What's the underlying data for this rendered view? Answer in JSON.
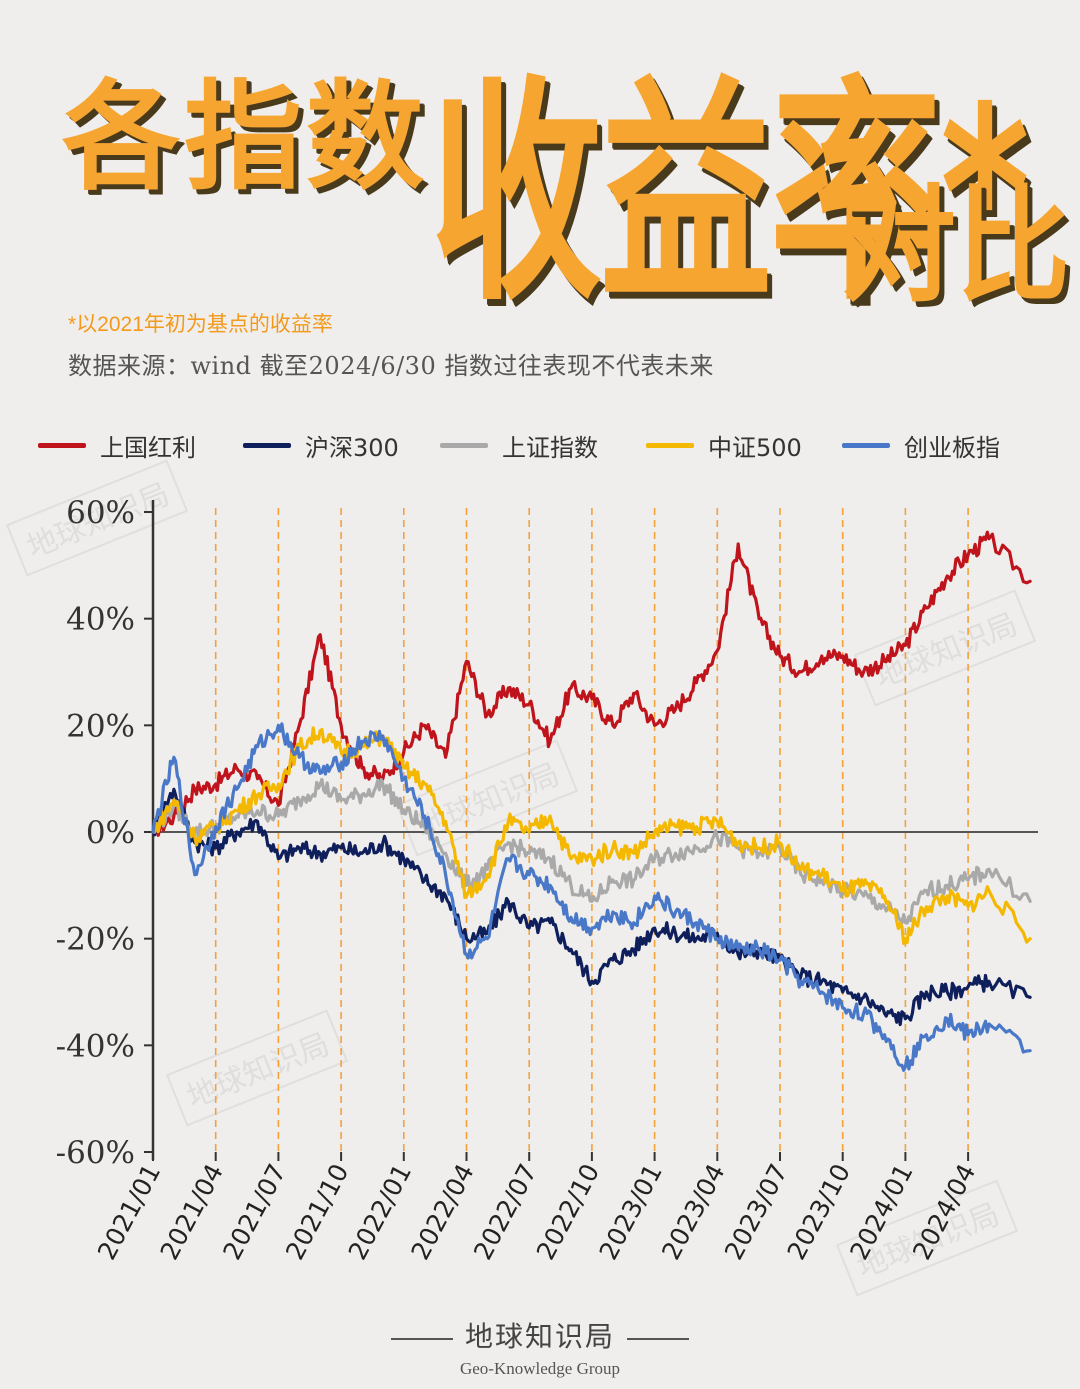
{
  "title": {
    "part1": "各指数",
    "part2": "收益率*",
    "part3": "对比"
  },
  "note": "*以2021年初为基点的收益率",
  "source": "数据来源：wind 截至2024/6/30 指数过往表现不代表未来",
  "watermark": "地球知识局",
  "footer": {
    "brand": "地球知识局",
    "english": "Geo-Knowledge Group"
  },
  "chart_data": {
    "type": "line",
    "ylim": [
      -60,
      60
    ],
    "yticks": [
      "60%",
      "40%",
      "20%",
      "0%",
      "-20%",
      "-40%",
      "-60%"
    ],
    "ytick_values": [
      60,
      40,
      20,
      0,
      -20,
      -40,
      -60
    ],
    "xticks": [
      "2021/01",
      "2021/04",
      "2021/07",
      "2021/10",
      "2022/01",
      "2022/04",
      "2022/07",
      "2022/10",
      "2023/01",
      "2023/04",
      "2023/07",
      "2023/10",
      "2024/01",
      "2024/04"
    ],
    "x_end": "2024/06/30",
    "legend_position": "top",
    "grid": "vertical dashed lines at each quarter",
    "series": [
      {
        "name": "上国红利",
        "color": "#c0141c",
        "values": [
          [
            "2021/01",
            0
          ],
          [
            "2021/02",
            3
          ],
          [
            "2021/03",
            8
          ],
          [
            "2021/04",
            9
          ],
          [
            "2021/05",
            12
          ],
          [
            "2021/06",
            10
          ],
          [
            "2021/07",
            5
          ],
          [
            "2021/08",
            20
          ],
          [
            "2021/09",
            37
          ],
          [
            "2021/10",
            20
          ],
          [
            "2021/11",
            12
          ],
          [
            "2021/12",
            10
          ],
          [
            "2022/01",
            15
          ],
          [
            "2022/02",
            20
          ],
          [
            "2022/03",
            14
          ],
          [
            "2022/04",
            32
          ],
          [
            "2022/05",
            22
          ],
          [
            "2022/06",
            27
          ],
          [
            "2022/07",
            24
          ],
          [
            "2022/08",
            17
          ],
          [
            "2022/09",
            27
          ],
          [
            "2022/10",
            25
          ],
          [
            "2022/11",
            20
          ],
          [
            "2022/12",
            26
          ],
          [
            "2023/01",
            20
          ],
          [
            "2023/02",
            23
          ],
          [
            "2023/03",
            28
          ],
          [
            "2023/04",
            34
          ],
          [
            "2023/05",
            54
          ],
          [
            "2023/06",
            40
          ],
          [
            "2023/07",
            33
          ],
          [
            "2023/08",
            30
          ],
          [
            "2023/09",
            33
          ],
          [
            "2023/10",
            33
          ],
          [
            "2023/11",
            30
          ],
          [
            "2023/12",
            32
          ],
          [
            "2024/01",
            35
          ],
          [
            "2024/02",
            42
          ],
          [
            "2024/03",
            48
          ],
          [
            "2024/04",
            52
          ],
          [
            "2024/05",
            55
          ],
          [
            "2024/06",
            47
          ]
        ]
      },
      {
        "name": "沪深300",
        "color": "#0f1f5c",
        "values": [
          [
            "2021/01",
            0
          ],
          [
            "2021/02",
            8
          ],
          [
            "2021/03",
            -2
          ],
          [
            "2021/04",
            -3
          ],
          [
            "2021/05",
            0
          ],
          [
            "2021/06",
            2
          ],
          [
            "2021/07",
            -5
          ],
          [
            "2021/08",
            -3
          ],
          [
            "2021/09",
            -4
          ],
          [
            "2021/10",
            -3
          ],
          [
            "2021/11",
            -4
          ],
          [
            "2021/12",
            -2
          ],
          [
            "2022/01",
            -5
          ],
          [
            "2022/02",
            -9
          ],
          [
            "2022/03",
            -12
          ],
          [
            "2022/04",
            -20
          ],
          [
            "2022/05",
            -19
          ],
          [
            "2022/06",
            -13
          ],
          [
            "2022/07",
            -18
          ],
          [
            "2022/08",
            -17
          ],
          [
            "2022/09",
            -22
          ],
          [
            "2022/10",
            -28
          ],
          [
            "2022/11",
            -24
          ],
          [
            "2022/12",
            -22
          ],
          [
            "2023/01",
            -18
          ],
          [
            "2023/02",
            -19
          ],
          [
            "2023/03",
            -20
          ],
          [
            "2023/04",
            -19
          ],
          [
            "2023/05",
            -23
          ],
          [
            "2023/06",
            -22
          ],
          [
            "2023/07",
            -24
          ],
          [
            "2023/08",
            -27
          ],
          [
            "2023/09",
            -28
          ],
          [
            "2023/10",
            -30
          ],
          [
            "2023/11",
            -31
          ],
          [
            "2023/12",
            -34
          ],
          [
            "2024/01",
            -35
          ],
          [
            "2024/02",
            -30
          ],
          [
            "2024/03",
            -30
          ],
          [
            "2024/04",
            -29
          ],
          [
            "2024/05",
            -28
          ],
          [
            "2024/06",
            -31
          ]
        ]
      },
      {
        "name": "上证指数",
        "color": "#a9a9a9",
        "values": [
          [
            "2021/01",
            0
          ],
          [
            "2021/02",
            5
          ],
          [
            "2021/03",
            0
          ],
          [
            "2021/04",
            1
          ],
          [
            "2021/05",
            3
          ],
          [
            "2021/06",
            4
          ],
          [
            "2021/07",
            3
          ],
          [
            "2021/08",
            6
          ],
          [
            "2021/09",
            9
          ],
          [
            "2021/10",
            6
          ],
          [
            "2021/11",
            7
          ],
          [
            "2021/12",
            9
          ],
          [
            "2022/01",
            4
          ],
          [
            "2022/02",
            1
          ],
          [
            "2022/03",
            -4
          ],
          [
            "2022/04",
            -10
          ],
          [
            "2022/05",
            -7
          ],
          [
            "2022/06",
            -2
          ],
          [
            "2022/07",
            -4
          ],
          [
            "2022/08",
            -5
          ],
          [
            "2022/09",
            -10
          ],
          [
            "2022/10",
            -13
          ],
          [
            "2022/11",
            -9
          ],
          [
            "2022/12",
            -9
          ],
          [
            "2023/01",
            -5
          ],
          [
            "2023/02",
            -4
          ],
          [
            "2023/03",
            -3
          ],
          [
            "2023/04",
            -1
          ],
          [
            "2023/05",
            -3
          ],
          [
            "2023/06",
            -4
          ],
          [
            "2023/07",
            -3
          ],
          [
            "2023/08",
            -8
          ],
          [
            "2023/09",
            -9
          ],
          [
            "2023/10",
            -11
          ],
          [
            "2023/11",
            -12
          ],
          [
            "2023/12",
            -14
          ],
          [
            "2024/01",
            -17
          ],
          [
            "2024/02",
            -11
          ],
          [
            "2024/03",
            -10
          ],
          [
            "2024/04",
            -9
          ],
          [
            "2024/05",
            -7
          ],
          [
            "2024/06",
            -13
          ]
        ]
      },
      {
        "name": "中证500",
        "color": "#f5b800",
        "values": [
          [
            "2021/01",
            0
          ],
          [
            "2021/02",
            6
          ],
          [
            "2021/03",
            -1
          ],
          [
            "2021/04",
            1
          ],
          [
            "2021/05",
            4
          ],
          [
            "2021/06",
            7
          ],
          [
            "2021/07",
            9
          ],
          [
            "2021/08",
            16
          ],
          [
            "2021/09",
            19
          ],
          [
            "2021/10",
            15
          ],
          [
            "2021/11",
            16
          ],
          [
            "2021/12",
            18
          ],
          [
            "2022/01",
            12
          ],
          [
            "2022/02",
            9
          ],
          [
            "2022/03",
            2
          ],
          [
            "2022/04",
            -12
          ],
          [
            "2022/05",
            -8
          ],
          [
            "2022/06",
            2
          ],
          [
            "2022/07",
            0
          ],
          [
            "2022/08",
            3
          ],
          [
            "2022/09",
            -5
          ],
          [
            "2022/10",
            -5
          ],
          [
            "2022/11",
            -3
          ],
          [
            "2022/12",
            -4
          ],
          [
            "2023/01",
            0
          ],
          [
            "2023/02",
            1
          ],
          [
            "2023/03",
            1
          ],
          [
            "2023/04",
            2
          ],
          [
            "2023/05",
            -2
          ],
          [
            "2023/06",
            -3
          ],
          [
            "2023/07",
            -2
          ],
          [
            "2023/08",
            -7
          ],
          [
            "2023/09",
            -8
          ],
          [
            "2023/10",
            -11
          ],
          [
            "2023/11",
            -10
          ],
          [
            "2023/12",
            -12
          ],
          [
            "2024/01",
            -20
          ],
          [
            "2024/02",
            -14
          ],
          [
            "2024/03",
            -12
          ],
          [
            "2024/04",
            -14
          ],
          [
            "2024/05",
            -11
          ],
          [
            "2024/06",
            -20
          ]
        ]
      },
      {
        "name": "创业板指",
        "color": "#4a78c8",
        "values": [
          [
            "2021/01",
            0
          ],
          [
            "2021/02",
            14
          ],
          [
            "2021/03",
            -8
          ],
          [
            "2021/04",
            1
          ],
          [
            "2021/05",
            8
          ],
          [
            "2021/06",
            16
          ],
          [
            "2021/07",
            20
          ],
          [
            "2021/08",
            14
          ],
          [
            "2021/09",
            11
          ],
          [
            "2021/10",
            13
          ],
          [
            "2021/11",
            17
          ],
          [
            "2021/12",
            18
          ],
          [
            "2022/01",
            10
          ],
          [
            "2022/02",
            3
          ],
          [
            "2022/03",
            -8
          ],
          [
            "2022/04",
            -23
          ],
          [
            "2022/05",
            -20
          ],
          [
            "2022/06",
            -5
          ],
          [
            "2022/07",
            -8
          ],
          [
            "2022/08",
            -10
          ],
          [
            "2022/09",
            -16
          ],
          [
            "2022/10",
            -18
          ],
          [
            "2022/11",
            -15
          ],
          [
            "2022/12",
            -17
          ],
          [
            "2023/01",
            -12
          ],
          [
            "2023/02",
            -15
          ],
          [
            "2023/03",
            -17
          ],
          [
            "2023/04",
            -20
          ],
          [
            "2023/05",
            -22
          ],
          [
            "2023/06",
            -22
          ],
          [
            "2023/07",
            -24
          ],
          [
            "2023/08",
            -28
          ],
          [
            "2023/09",
            -30
          ],
          [
            "2023/10",
            -33
          ],
          [
            "2023/11",
            -34
          ],
          [
            "2023/12",
            -38
          ],
          [
            "2024/01",
            -44
          ],
          [
            "2024/02",
            -38
          ],
          [
            "2024/03",
            -35
          ],
          [
            "2024/04",
            -38
          ],
          [
            "2024/05",
            -36
          ],
          [
            "2024/06",
            -41
          ]
        ]
      }
    ]
  }
}
